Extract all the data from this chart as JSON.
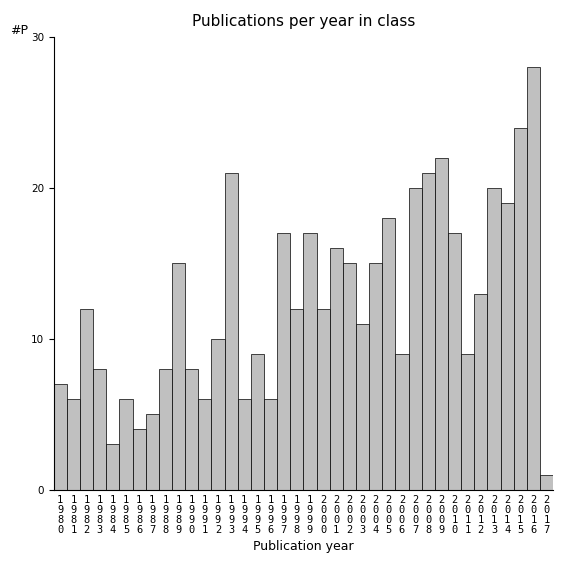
{
  "title": "Publications per year in class",
  "xlabel": "Publication year",
  "ylabel": "#P",
  "years": [
    "1980",
    "1981",
    "1982",
    "1983",
    "1984",
    "1985",
    "1986",
    "1987",
    "1988",
    "1989",
    "1990",
    "1991",
    "1992",
    "1993",
    "1994",
    "1995",
    "1996",
    "1997",
    "1998",
    "1999",
    "2000",
    "2001",
    "2002",
    "2003",
    "2004",
    "2005",
    "2006",
    "2007",
    "2008",
    "2009",
    "2010",
    "2011",
    "2012",
    "2013",
    "2014",
    "2015",
    "2016",
    "2017"
  ],
  "values": [
    7,
    6,
    12,
    8,
    3,
    6,
    4,
    5,
    8,
    15,
    8,
    6,
    10,
    21,
    6,
    9,
    6,
    17,
    12,
    17,
    12,
    16,
    15,
    11,
    15,
    18,
    9,
    20,
    21,
    22,
    17,
    9,
    13,
    20,
    19,
    24,
    28,
    1
  ],
  "bar_color": "#c0c0c0",
  "bar_edge_color": "#000000",
  "ylim": [
    0,
    30
  ],
  "yticks": [
    0,
    10,
    20,
    30
  ],
  "background_color": "#ffffff",
  "title_fontsize": 11,
  "axis_fontsize": 9,
  "tick_fontsize": 7.5
}
